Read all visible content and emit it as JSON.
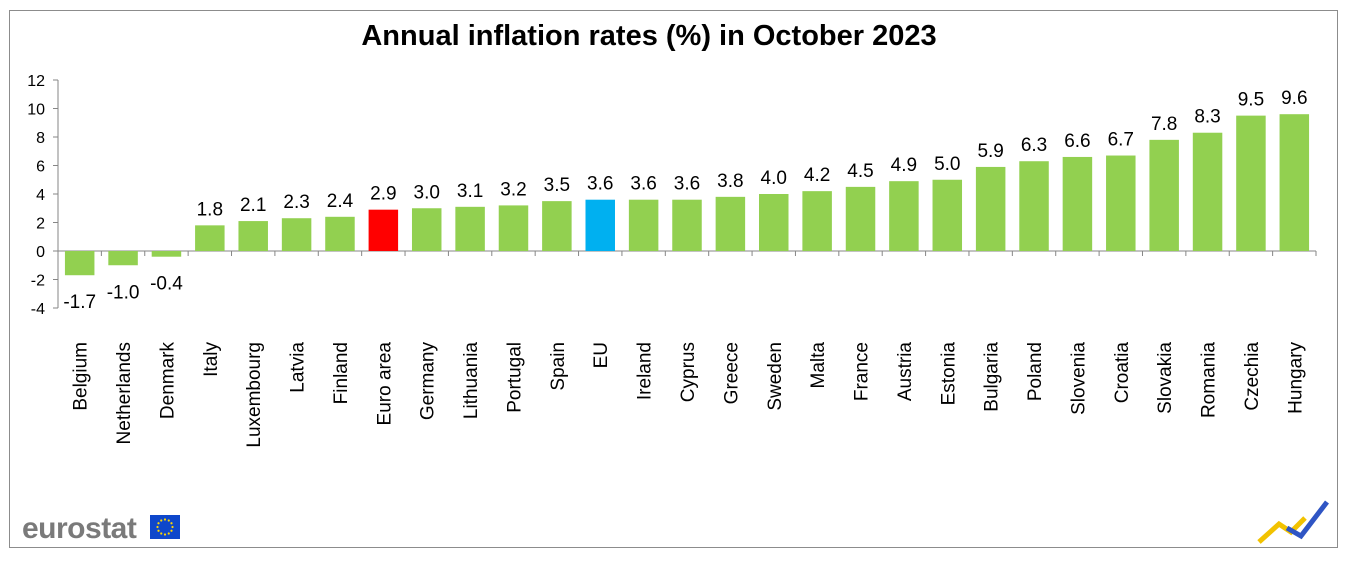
{
  "chart_data": {
    "type": "bar",
    "title": "Annual inflation rates (%) in October 2023",
    "xlabel": "",
    "ylabel": "",
    "ylim": [
      -4,
      12
    ],
    "yticks": [
      -4,
      -2,
      0,
      2,
      4,
      6,
      8,
      10,
      12
    ],
    "grid": false,
    "categories": [
      "Belgium",
      "Netherlands",
      "Denmark",
      "Italy",
      "Luxembourg",
      "Latvia",
      "Finland",
      "Euro area",
      "Germany",
      "Lithuania",
      "Portugal",
      "Spain",
      "EU",
      "Ireland",
      "Cyprus",
      "Greece",
      "Sweden",
      "Malta",
      "France",
      "Austria",
      "Estonia",
      "Bulgaria",
      "Poland",
      "Slovenia",
      "Croatia",
      "Slovakia",
      "Romania",
      "Czechia",
      "Hungary"
    ],
    "values": [
      -1.7,
      -1.0,
      -0.4,
      1.8,
      2.1,
      2.3,
      2.4,
      2.9,
      3.0,
      3.1,
      3.2,
      3.5,
      3.6,
      3.6,
      3.6,
      3.8,
      4.0,
      4.2,
      4.5,
      4.9,
      5.0,
      5.9,
      6.3,
      6.6,
      6.7,
      7.8,
      8.3,
      9.5,
      9.6
    ],
    "data_labels": [
      "-1.7",
      "-1.0",
      "-0.4",
      "1.8",
      "2.1",
      "2.3",
      "2.4",
      "2.9",
      "3.0",
      "3.1",
      "3.2",
      "3.5",
      "3.6",
      "3.6",
      "3.6",
      "3.8",
      "4.0",
      "4.2",
      "4.5",
      "4.9",
      "5.0",
      "5.9",
      "6.3",
      "6.6",
      "6.7",
      "7.8",
      "8.3",
      "9.5",
      "9.6"
    ],
    "colors": {
      "default": "#92d050",
      "Euro area": "#ff0000",
      "EU": "#00b0f0"
    }
  },
  "branding": {
    "logo_text": "eurostat",
    "flag_color": "#0e47cb",
    "flag_star_color": "#ffd700"
  }
}
